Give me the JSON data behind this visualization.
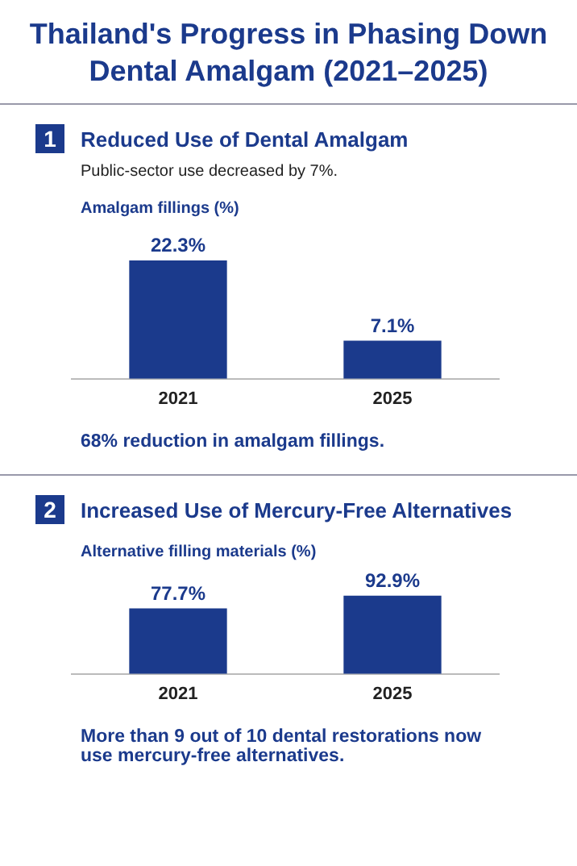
{
  "chart_data": [
    {
      "type": "bar",
      "title": "Thailand's Progress in Phasing Down Dental Amalgam (2021–2025)",
      "subtitle": "Reduced Use of Dental Amalgam",
      "ylabel": "Amalgam fillings (%)",
      "categories": [
        "2021",
        "2025"
      ],
      "values": [
        22.3,
        7.1
      ],
      "value_labels": [
        "22.3%",
        "7.1%"
      ],
      "color": "#1b3a8c",
      "grid": false,
      "legend": false,
      "annotations": [
        "1",
        "Public-sector use decreased by 7%.",
        "68% reduction in amalgam fillings."
      ]
    },
    {
      "type": "bar",
      "subtitle": "Increased Use of Mercury-Free Alternatives",
      "ylabel": "Alternative filling materials (%)",
      "categories": [
        "2021",
        "2025"
      ],
      "values": [
        77.7,
        92.9
      ],
      "value_labels": [
        "77.7%",
        "92.9%"
      ],
      "color": "#1b3a8c",
      "grid": false,
      "legend": false,
      "annotations": [
        "2",
        "More than 9 out of 10 dental restorations now use mercury-free alternatives."
      ]
    }
  ]
}
